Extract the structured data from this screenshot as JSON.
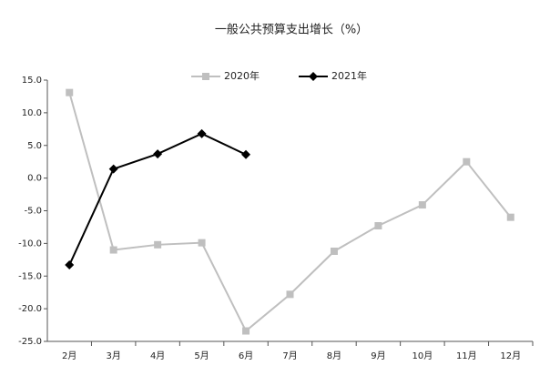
{
  "chart_data": {
    "type": "line",
    "title": "一般公共预算支出增长（%）",
    "categories": [
      "2月",
      "3月",
      "4月",
      "5月",
      "6月",
      "7月",
      "8月",
      "9月",
      "10月",
      "11月",
      "12月"
    ],
    "series": [
      {
        "name": "2020年",
        "color": "#bfbfbf",
        "marker": "square",
        "values": [
          13.1,
          -11.0,
          -10.2,
          -9.9,
          -23.4,
          -17.8,
          -11.2,
          -7.3,
          -4.1,
          2.5,
          -6.0
        ]
      },
      {
        "name": "2021年",
        "color": "#000000",
        "marker": "diamond",
        "values": [
          -13.3,
          1.4,
          3.7,
          6.8,
          3.6,
          null,
          null,
          null,
          null,
          null,
          null
        ]
      }
    ],
    "ylim": [
      -25,
      15
    ],
    "yticks": [
      {
        "value": -25,
        "label": "-25.0"
      },
      {
        "value": -20,
        "label": "-20.0"
      },
      {
        "value": -15,
        "label": "-15.0"
      },
      {
        "value": -10,
        "label": "-10.0"
      },
      {
        "value": -5,
        "label": "-5.0"
      },
      {
        "value": 0,
        "label": "0.0"
      },
      {
        "value": 5,
        "label": "5.0"
      },
      {
        "value": 10,
        "label": "10.0"
      },
      {
        "value": 15,
        "label": "15.0"
      }
    ],
    "grid": false,
    "legend": "top"
  }
}
